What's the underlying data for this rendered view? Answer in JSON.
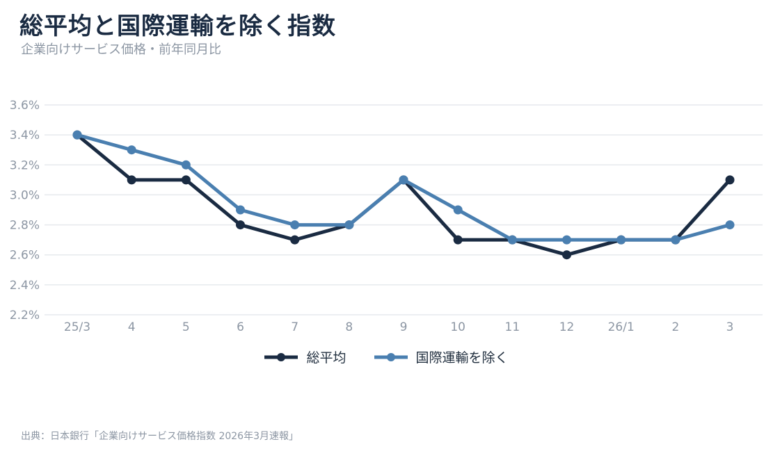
{
  "title": "総平均と国際運輸を除く指数",
  "subtitle": "企業向けサービス価格・前年同月比",
  "source": "出典：日本銀行「企業向けサービス価格指数 2026年3月速報」",
  "colors": {
    "series1": "#1a2b42",
    "series2": "#4a7fb0",
    "grid": "#e6e9ed",
    "tick": "#8c96a3"
  },
  "chart_data": {
    "type": "line",
    "categories": [
      "25/3",
      "4",
      "5",
      "6",
      "7",
      "8",
      "9",
      "10",
      "11",
      "12",
      "26/1",
      "2",
      "3"
    ],
    "y_ticks": [
      "2.2%",
      "2.4%",
      "2.6%",
      "2.8%",
      "3.0%",
      "3.2%",
      "3.4%",
      "3.6%"
    ],
    "ylim": [
      2.2,
      3.6
    ],
    "grid": true,
    "legend_position": "bottom-center",
    "series": [
      {
        "name": "総平均",
        "values": [
          3.4,
          3.1,
          3.1,
          2.8,
          2.7,
          2.8,
          3.1,
          2.7,
          2.7,
          2.6,
          2.7,
          2.7,
          3.1
        ]
      },
      {
        "name": "国際運輸を除く",
        "values": [
          3.4,
          3.3,
          3.2,
          2.9,
          2.8,
          2.8,
          3.1,
          2.9,
          2.7,
          2.7,
          2.7,
          2.7,
          2.8
        ]
      }
    ]
  }
}
